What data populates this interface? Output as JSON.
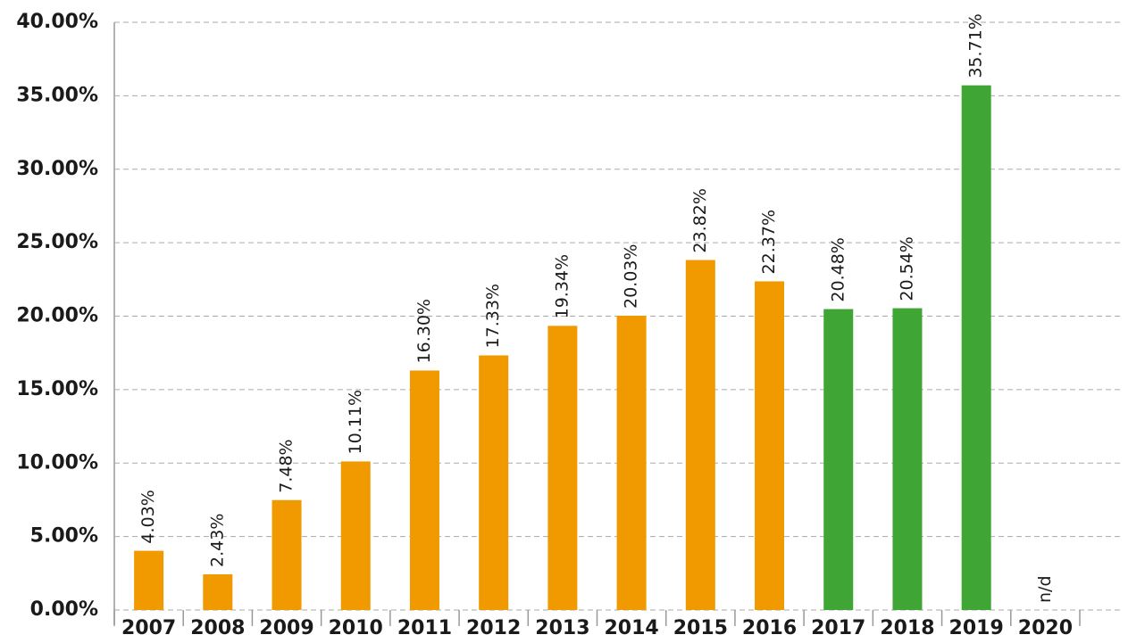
{
  "chart_data": {
    "type": "bar",
    "categories": [
      "2007",
      "2008",
      "2009",
      "2010",
      "2011",
      "2012",
      "2013",
      "2014",
      "2015",
      "2016",
      "2017",
      "2018",
      "2019",
      "2020"
    ],
    "values": [
      4.03,
      2.43,
      7.48,
      10.11,
      16.3,
      17.33,
      19.34,
      20.03,
      23.82,
      22.37,
      20.48,
      20.54,
      35.71,
      null
    ],
    "value_labels": [
      "4.03%",
      "2.43%",
      "7.48%",
      "10.11%",
      "16.30%",
      "17.33%",
      "19.34%",
      "20.03%",
      "23.82%",
      "22.37%",
      "20.48%",
      "20.54%",
      "35.71%",
      "n/d"
    ],
    "colors": [
      "#f09a00",
      "#f09a00",
      "#f09a00",
      "#f09a00",
      "#f09a00",
      "#f09a00",
      "#f09a00",
      "#f09a00",
      "#f09a00",
      "#f09a00",
      "#3fa535",
      "#3fa535",
      "#3fa535",
      "#3fa535"
    ],
    "ylim": [
      0,
      40
    ],
    "yticks": [
      {
        "value": 0,
        "label": "0.00%"
      },
      {
        "value": 5,
        "label": "5.00%"
      },
      {
        "value": 10,
        "label": "10.00%"
      },
      {
        "value": 15,
        "label": "15.00%"
      },
      {
        "value": 20,
        "label": "20.00%"
      },
      {
        "value": 25,
        "label": "25.00%"
      },
      {
        "value": 30,
        "label": "30.00%"
      },
      {
        "value": 35,
        "label": "35.00%"
      },
      {
        "value": 40,
        "label": "40.00%"
      }
    ],
    "grid": true
  }
}
